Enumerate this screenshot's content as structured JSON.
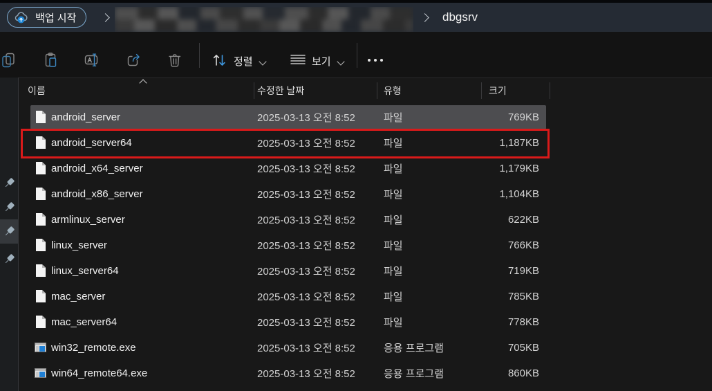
{
  "topbar": {
    "backup_button_label": "백업 시작",
    "path_current": "dbgsrv"
  },
  "toolbar": {
    "sort_label": "정렬",
    "view_label": "보기"
  },
  "nav": {
    "pins": [
      {
        "highlighted": false
      },
      {
        "highlighted": false
      },
      {
        "highlighted": true
      },
      {
        "highlighted": false
      }
    ]
  },
  "table": {
    "headers": [
      {
        "label": "이름",
        "sorted": "asc"
      },
      {
        "label": "수정한 날짜"
      },
      {
        "label": "유형"
      },
      {
        "label": "크기"
      }
    ],
    "rows": [
      {
        "name": "android_server",
        "date": "2025-03-13 오전 8:52",
        "type": "파일",
        "size": "769KB",
        "icon": "file",
        "selected": true,
        "red_box": false
      },
      {
        "name": "android_server64",
        "date": "2025-03-13 오전 8:52",
        "type": "파일",
        "size": "1,187KB",
        "icon": "file",
        "selected": false,
        "red_box": true
      },
      {
        "name": "android_x64_server",
        "date": "2025-03-13 오전 8:52",
        "type": "파일",
        "size": "1,179KB",
        "icon": "file",
        "selected": false,
        "red_box": false
      },
      {
        "name": "android_x86_server",
        "date": "2025-03-13 오전 8:52",
        "type": "파일",
        "size": "1,104KB",
        "icon": "file",
        "selected": false,
        "red_box": false
      },
      {
        "name": "armlinux_server",
        "date": "2025-03-13 오전 8:52",
        "type": "파일",
        "size": "622KB",
        "icon": "file",
        "selected": false,
        "red_box": false
      },
      {
        "name": "linux_server",
        "date": "2025-03-13 오전 8:52",
        "type": "파일",
        "size": "766KB",
        "icon": "file",
        "selected": false,
        "red_box": false
      },
      {
        "name": "linux_server64",
        "date": "2025-03-13 오전 8:52",
        "type": "파일",
        "size": "719KB",
        "icon": "file",
        "selected": false,
        "red_box": false
      },
      {
        "name": "mac_server",
        "date": "2025-03-13 오전 8:52",
        "type": "파일",
        "size": "785KB",
        "icon": "file",
        "selected": false,
        "red_box": false
      },
      {
        "name": "mac_server64",
        "date": "2025-03-13 오전 8:52",
        "type": "파일",
        "size": "778KB",
        "icon": "file",
        "selected": false,
        "red_box": false
      },
      {
        "name": "win32_remote.exe",
        "date": "2025-03-13 오전 8:52",
        "type": "응용 프로그램",
        "size": "705KB",
        "icon": "app",
        "selected": false,
        "red_box": false
      },
      {
        "name": "win64_remote64.exe",
        "date": "2025-03-13 오전 8:52",
        "type": "응용 프로그램",
        "size": "860KB",
        "icon": "app",
        "selected": false,
        "red_box": false
      }
    ]
  },
  "icons": [
    "cloud-backup-icon",
    "chevron-right-icon",
    "copy-icon",
    "paste-icon",
    "rename-icon",
    "share-icon",
    "delete-icon",
    "sort-arrows-icon",
    "view-lines-icon",
    "more-icon",
    "pin-icon",
    "file-icon",
    "application-icon",
    "sort-ascending-caret"
  ],
  "colors": {
    "accent_blue": "#4aa3df",
    "addressbar_bg": "#252b34",
    "toolbar_bg": "#131313",
    "content_bg": "#181818",
    "selection_gray": "#4d4d50",
    "highlight_red": "#da1a1a",
    "button_border": "#7ba7cc",
    "exe_icon_blue": "#1f7fd4"
  }
}
